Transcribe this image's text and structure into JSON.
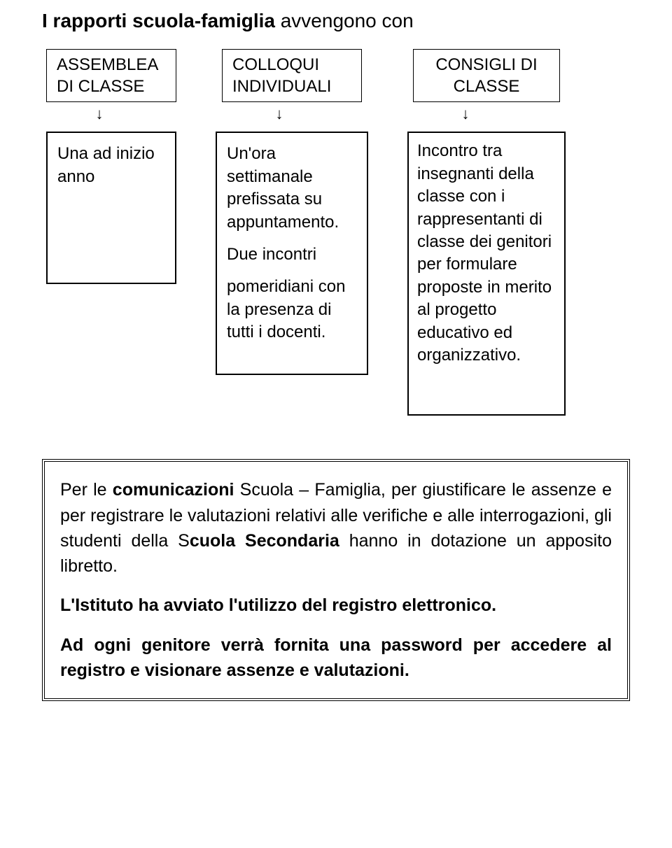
{
  "heading": {
    "bold": "I rapporti scuola-famiglia",
    "plain": " avvengono con"
  },
  "columns": [
    {
      "top": "ASSEMBLEA\nDI CLASSE",
      "desc": "Una ad inizio anno",
      "topWidth": 186,
      "descWidth": 186,
      "descHeight": 218,
      "descPad": "14px 14px 18px 14px",
      "topAlign": "left",
      "arrowShift": -34
    },
    {
      "top": "COLLOQUI\nINDIVIDUALI",
      "desc": "Un'ora settimanale prefissata su appuntamento.\n\n Due incontri\n\npomeridiani con la presenza di tutti i  docenti.",
      "topWidth": 200,
      "descWidth": 218,
      "descHeight": 348,
      "descPad": "14px 14px 18px 14px",
      "topAlign": "left",
      "arrowShift": -36
    },
    {
      "top": "CONSIGLI DI\nCLASSE",
      "desc": "Incontro tra insegnanti della classe con i rappresentanti di classe dei genitori per formulare proposte in merito al progetto educativo ed organizzativo.",
      "topWidth": 210,
      "descWidth": 226,
      "descHeight": 406,
      "descPad": "10px 12px 14px 12px",
      "topAlign": "center",
      "arrowShift": -60
    }
  ],
  "framed": {
    "p1_a": "Per le ",
    "p1_b": "comunicazioni",
    "p1_c": " Scuola – Famiglia, per giustificare le assenze e per registrare le valutazioni relativi alle verifiche e alle interrogazioni, gli studenti della S",
    "p1_d": "cuola Secondaria",
    "p1_e": " hanno in dotazione un apposito libretto.",
    "p2": "L'Istituto ha avviato l'utilizzo del registro elettronico.",
    "p3": "Ad ogni genitore verrà fornita una password per accedere al registro  e visionare assenze e valutazioni."
  }
}
